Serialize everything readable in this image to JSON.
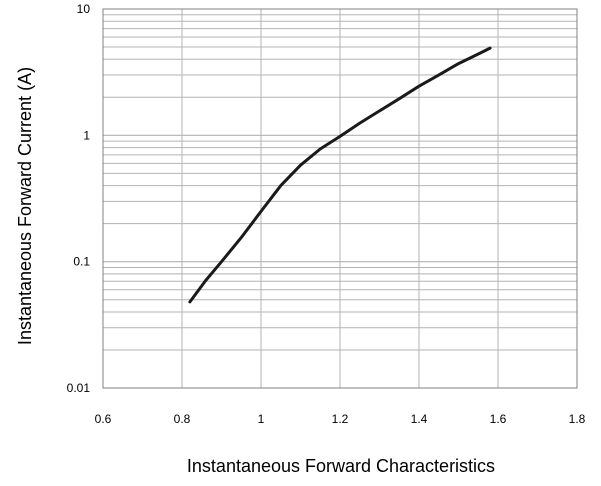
{
  "chart_data": {
    "type": "line",
    "title": "",
    "xlabel": "Instantaneous Forward Characteristics",
    "ylabel": "Instantaneous Forward Current (A)",
    "xlim": [
      0.6,
      1.8
    ],
    "ylim": [
      0.01,
      10
    ],
    "y_scale": "log",
    "x_ticks": [
      "0.6",
      "0.8",
      "1",
      "1.2",
      "1.4",
      "1.6",
      "1.8"
    ],
    "y_ticks": [
      "0.01",
      "0.1",
      "1",
      "10"
    ],
    "grid": true,
    "series": [
      {
        "x": [
          0.82,
          0.86,
          0.9,
          0.95,
          1.0,
          1.05,
          1.1,
          1.15,
          1.2,
          1.25,
          1.3,
          1.35,
          1.4,
          1.45,
          1.5,
          1.55,
          1.58
        ],
        "y": [
          0.048,
          0.071,
          0.1,
          0.155,
          0.25,
          0.4,
          0.58,
          0.78,
          0.98,
          1.25,
          1.56,
          1.95,
          2.45,
          3.0,
          3.7,
          4.4,
          4.9
        ]
      }
    ],
    "colors": {
      "line": "#1a1a1a",
      "grid": "#b3b3b3",
      "axis": "#808080"
    }
  }
}
